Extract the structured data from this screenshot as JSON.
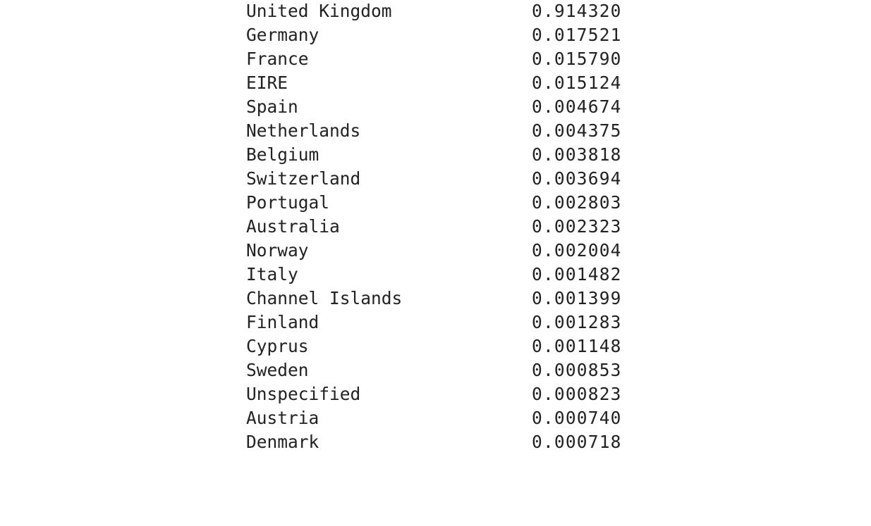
{
  "series_output": {
    "rows": [
      {
        "country": "United Kingdom",
        "value": "0.914320"
      },
      {
        "country": "Germany",
        "value": "0.017521"
      },
      {
        "country": "France",
        "value": "0.015790"
      },
      {
        "country": "EIRE",
        "value": "0.015124"
      },
      {
        "country": "Spain",
        "value": "0.004674"
      },
      {
        "country": "Netherlands",
        "value": "0.004375"
      },
      {
        "country": "Belgium",
        "value": "0.003818"
      },
      {
        "country": "Switzerland",
        "value": "0.003694"
      },
      {
        "country": "Portugal",
        "value": "0.002803"
      },
      {
        "country": "Australia",
        "value": "0.002323"
      },
      {
        "country": "Norway",
        "value": "0.002004"
      },
      {
        "country": "Italy",
        "value": "0.001482"
      },
      {
        "country": "Channel Islands",
        "value": "0.001399"
      },
      {
        "country": "Finland",
        "value": "0.001283"
      },
      {
        "country": "Cyprus",
        "value": "0.001148"
      },
      {
        "country": "Sweden",
        "value": "0.000853"
      },
      {
        "country": "Unspecified",
        "value": "0.000823"
      },
      {
        "country": "Austria",
        "value": "0.000740"
      },
      {
        "country": "Denmark",
        "value": "0.000718"
      }
    ]
  }
}
